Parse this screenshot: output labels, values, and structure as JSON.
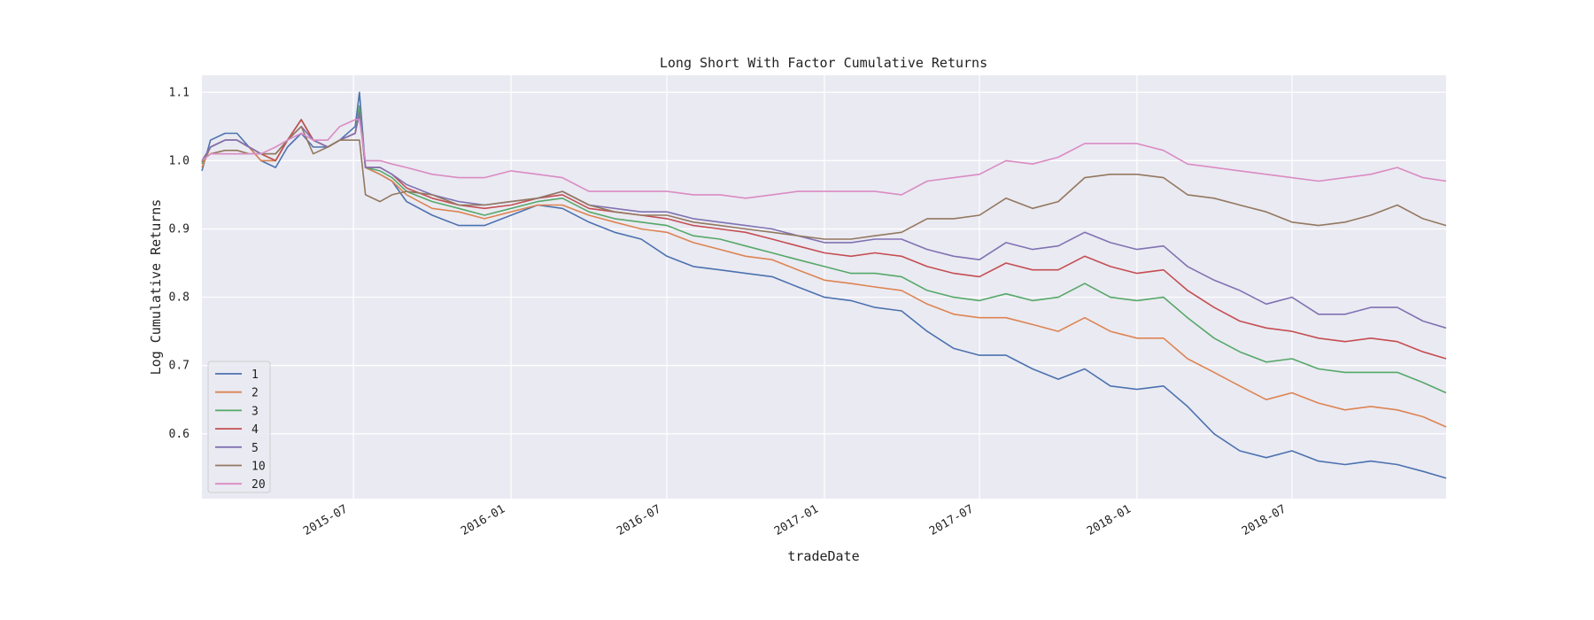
{
  "chart_data": {
    "type": "line",
    "title": "Long Short With Factor Cumulative Returns",
    "xlabel": "tradeDate",
    "ylabel": "Log Cumulative Returns",
    "x_range": [
      "2015-01-05",
      "2018-12-28"
    ],
    "ylim": [
      0.505,
      1.125
    ],
    "x_ticks": [
      {
        "date": "2015-07-01",
        "label": "2015-07"
      },
      {
        "date": "2016-01-01",
        "label": "2016-01"
      },
      {
        "date": "2016-07-01",
        "label": "2016-07"
      },
      {
        "date": "2017-01-01",
        "label": "2017-01"
      },
      {
        "date": "2017-07-01",
        "label": "2017-07"
      },
      {
        "date": "2018-01-01",
        "label": "2018-01"
      },
      {
        "date": "2018-07-01",
        "label": "2018-07"
      }
    ],
    "y_ticks": [
      0.6,
      0.7,
      0.8,
      0.9,
      1.0,
      1.1
    ],
    "y_tick_labels": [
      "0.6",
      "0.7",
      "0.8",
      "0.9",
      "1.0",
      "1.1"
    ],
    "grid": true,
    "legend_position": "lower-left",
    "x": [
      "2015-01-05",
      "2015-01-15",
      "2015-02-01",
      "2015-02-15",
      "2015-03-01",
      "2015-03-15",
      "2015-04-01",
      "2015-04-15",
      "2015-05-01",
      "2015-05-15",
      "2015-06-01",
      "2015-06-15",
      "2015-07-03",
      "2015-07-08",
      "2015-07-15",
      "2015-08-01",
      "2015-08-15",
      "2015-09-01",
      "2015-10-01",
      "2015-11-01",
      "2015-12-01",
      "2016-01-01",
      "2016-02-01",
      "2016-03-01",
      "2016-04-01",
      "2016-05-01",
      "2016-06-01",
      "2016-07-01",
      "2016-08-01",
      "2016-09-01",
      "2016-10-01",
      "2016-11-01",
      "2016-12-01",
      "2017-01-01",
      "2017-02-01",
      "2017-03-01",
      "2017-04-01",
      "2017-05-01",
      "2017-06-01",
      "2017-07-01",
      "2017-08-01",
      "2017-09-01",
      "2017-10-01",
      "2017-11-01",
      "2017-12-01",
      "2018-01-01",
      "2018-02-01",
      "2018-03-01",
      "2018-04-01",
      "2018-05-01",
      "2018-06-01",
      "2018-07-01",
      "2018-08-01",
      "2018-09-01",
      "2018-10-01",
      "2018-11-01",
      "2018-12-01",
      "2018-12-28"
    ],
    "series": [
      {
        "name": "1",
        "color": "#4c72b0",
        "values": [
          0.985,
          1.03,
          1.04,
          1.04,
          1.02,
          1.0,
          0.99,
          1.02,
          1.04,
          1.02,
          1.02,
          1.03,
          1.05,
          1.1,
          0.99,
          0.98,
          0.97,
          0.94,
          0.92,
          0.905,
          0.905,
          0.92,
          0.935,
          0.93,
          0.91,
          0.895,
          0.885,
          0.86,
          0.845,
          0.84,
          0.835,
          0.83,
          0.815,
          0.8,
          0.795,
          0.785,
          0.78,
          0.75,
          0.725,
          0.715,
          0.715,
          0.695,
          0.68,
          0.695,
          0.67,
          0.665,
          0.67,
          0.64,
          0.6,
          0.575,
          0.565,
          0.575,
          0.56,
          0.555,
          0.56,
          0.555,
          0.545,
          0.535
        ]
      },
      {
        "name": "2",
        "color": "#dd8452",
        "values": [
          0.99,
          1.02,
          1.03,
          1.03,
          1.02,
          1.0,
          1.0,
          1.03,
          1.06,
          1.03,
          1.02,
          1.03,
          1.04,
          1.08,
          0.99,
          0.98,
          0.97,
          0.95,
          0.93,
          0.925,
          0.915,
          0.925,
          0.935,
          0.935,
          0.92,
          0.91,
          0.9,
          0.895,
          0.88,
          0.87,
          0.86,
          0.855,
          0.84,
          0.825,
          0.82,
          0.815,
          0.81,
          0.79,
          0.775,
          0.77,
          0.77,
          0.76,
          0.75,
          0.77,
          0.75,
          0.74,
          0.74,
          0.71,
          0.69,
          0.67,
          0.65,
          0.66,
          0.645,
          0.635,
          0.64,
          0.635,
          0.625,
          0.61
        ]
      },
      {
        "name": "3",
        "color": "#55a868",
        "values": [
          0.995,
          1.02,
          1.03,
          1.03,
          1.02,
          1.01,
          1.0,
          1.03,
          1.06,
          1.03,
          1.02,
          1.03,
          1.04,
          1.08,
          0.99,
          0.985,
          0.975,
          0.955,
          0.94,
          0.93,
          0.92,
          0.93,
          0.94,
          0.945,
          0.925,
          0.915,
          0.91,
          0.905,
          0.89,
          0.885,
          0.875,
          0.865,
          0.855,
          0.845,
          0.835,
          0.835,
          0.83,
          0.81,
          0.8,
          0.795,
          0.805,
          0.795,
          0.8,
          0.82,
          0.8,
          0.795,
          0.8,
          0.77,
          0.74,
          0.72,
          0.705,
          0.71,
          0.695,
          0.69,
          0.69,
          0.69,
          0.675,
          0.66
        ]
      },
      {
        "name": "4",
        "color": "#c44e52",
        "values": [
          0.998,
          1.02,
          1.03,
          1.03,
          1.02,
          1.01,
          1.0,
          1.03,
          1.06,
          1.03,
          1.02,
          1.03,
          1.04,
          1.07,
          0.99,
          0.99,
          0.98,
          0.96,
          0.945,
          0.935,
          0.93,
          0.935,
          0.945,
          0.95,
          0.93,
          0.925,
          0.92,
          0.915,
          0.905,
          0.9,
          0.895,
          0.885,
          0.875,
          0.865,
          0.86,
          0.865,
          0.86,
          0.845,
          0.835,
          0.83,
          0.85,
          0.84,
          0.84,
          0.86,
          0.845,
          0.835,
          0.84,
          0.81,
          0.785,
          0.765,
          0.755,
          0.75,
          0.74,
          0.735,
          0.74,
          0.735,
          0.72,
          0.71
        ]
      },
      {
        "name": "5",
        "color": "#8172b3",
        "values": [
          1.0,
          1.02,
          1.03,
          1.03,
          1.02,
          1.01,
          1.01,
          1.03,
          1.05,
          1.03,
          1.02,
          1.03,
          1.04,
          1.07,
          0.99,
          0.99,
          0.98,
          0.965,
          0.95,
          0.94,
          0.935,
          0.94,
          0.945,
          0.955,
          0.935,
          0.93,
          0.925,
          0.925,
          0.915,
          0.91,
          0.905,
          0.9,
          0.89,
          0.88,
          0.88,
          0.885,
          0.885,
          0.87,
          0.86,
          0.855,
          0.88,
          0.87,
          0.875,
          0.895,
          0.88,
          0.87,
          0.875,
          0.845,
          0.825,
          0.81,
          0.79,
          0.8,
          0.775,
          0.775,
          0.785,
          0.785,
          0.765,
          0.755
        ]
      },
      {
        "name": "10",
        "color": "#937860",
        "values": [
          1.0,
          1.01,
          1.015,
          1.015,
          1.01,
          1.01,
          1.01,
          1.03,
          1.05,
          1.01,
          1.02,
          1.03,
          1.03,
          1.03,
          0.95,
          0.94,
          0.95,
          0.955,
          0.95,
          0.935,
          0.935,
          0.94,
          0.945,
          0.955,
          0.935,
          0.925,
          0.92,
          0.92,
          0.91,
          0.905,
          0.9,
          0.895,
          0.89,
          0.885,
          0.885,
          0.89,
          0.895,
          0.915,
          0.915,
          0.92,
          0.945,
          0.93,
          0.94,
          0.975,
          0.98,
          0.98,
          0.975,
          0.95,
          0.945,
          0.935,
          0.925,
          0.91,
          0.905,
          0.91,
          0.92,
          0.935,
          0.915,
          0.905
        ]
      },
      {
        "name": "20",
        "color": "#da8bc3",
        "values": [
          1.0,
          1.01,
          1.01,
          1.01,
          1.01,
          1.01,
          1.02,
          1.03,
          1.04,
          1.03,
          1.03,
          1.05,
          1.06,
          1.06,
          1.0,
          1.0,
          0.995,
          0.99,
          0.98,
          0.975,
          0.975,
          0.985,
          0.98,
          0.975,
          0.955,
          0.955,
          0.955,
          0.955,
          0.95,
          0.95,
          0.945,
          0.95,
          0.955,
          0.955,
          0.955,
          0.955,
          0.95,
          0.97,
          0.975,
          0.98,
          1.0,
          0.995,
          1.005,
          1.025,
          1.025,
          1.025,
          1.015,
          0.995,
          0.99,
          0.985,
          0.98,
          0.975,
          0.97,
          0.975,
          0.98,
          0.99,
          0.975,
          0.97
        ]
      }
    ]
  }
}
